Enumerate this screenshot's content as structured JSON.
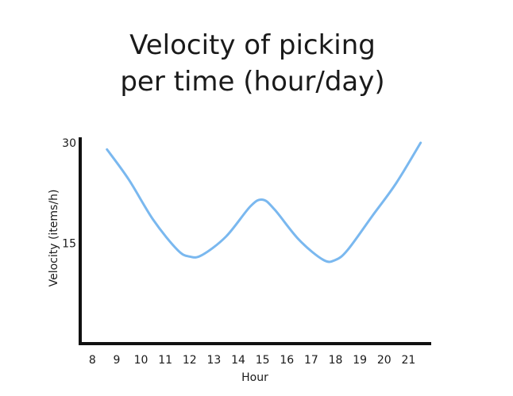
{
  "chart_data": {
    "type": "line",
    "title_lines": [
      "Velocity of picking",
      "per time (hour/day)"
    ],
    "xlabel": "Hour",
    "ylabel": "Velocity (items/h)",
    "x_ticks": [
      8,
      9,
      10,
      11,
      12,
      13,
      14,
      15,
      16,
      17,
      18,
      19,
      20,
      21
    ],
    "y_ticks": [
      15,
      30
    ],
    "xlim": [
      7.5,
      22
    ],
    "ylim": [
      0,
      32
    ],
    "grid": false,
    "line_color": "#7ab8ef",
    "series": [
      {
        "x": [
          8.6,
          9.5,
          10.5,
          11.5,
          12,
          12.5,
          13.5,
          14.5,
          15,
          15.5,
          16.5,
          17.5,
          18,
          18.5,
          19.5,
          20.5,
          21.5
        ],
        "values": [
          29,
          24.5,
          18.5,
          14,
          13,
          13.2,
          16,
          20.5,
          21.5,
          20,
          15.5,
          12.5,
          12.5,
          14,
          19,
          24,
          30
        ]
      }
    ]
  }
}
